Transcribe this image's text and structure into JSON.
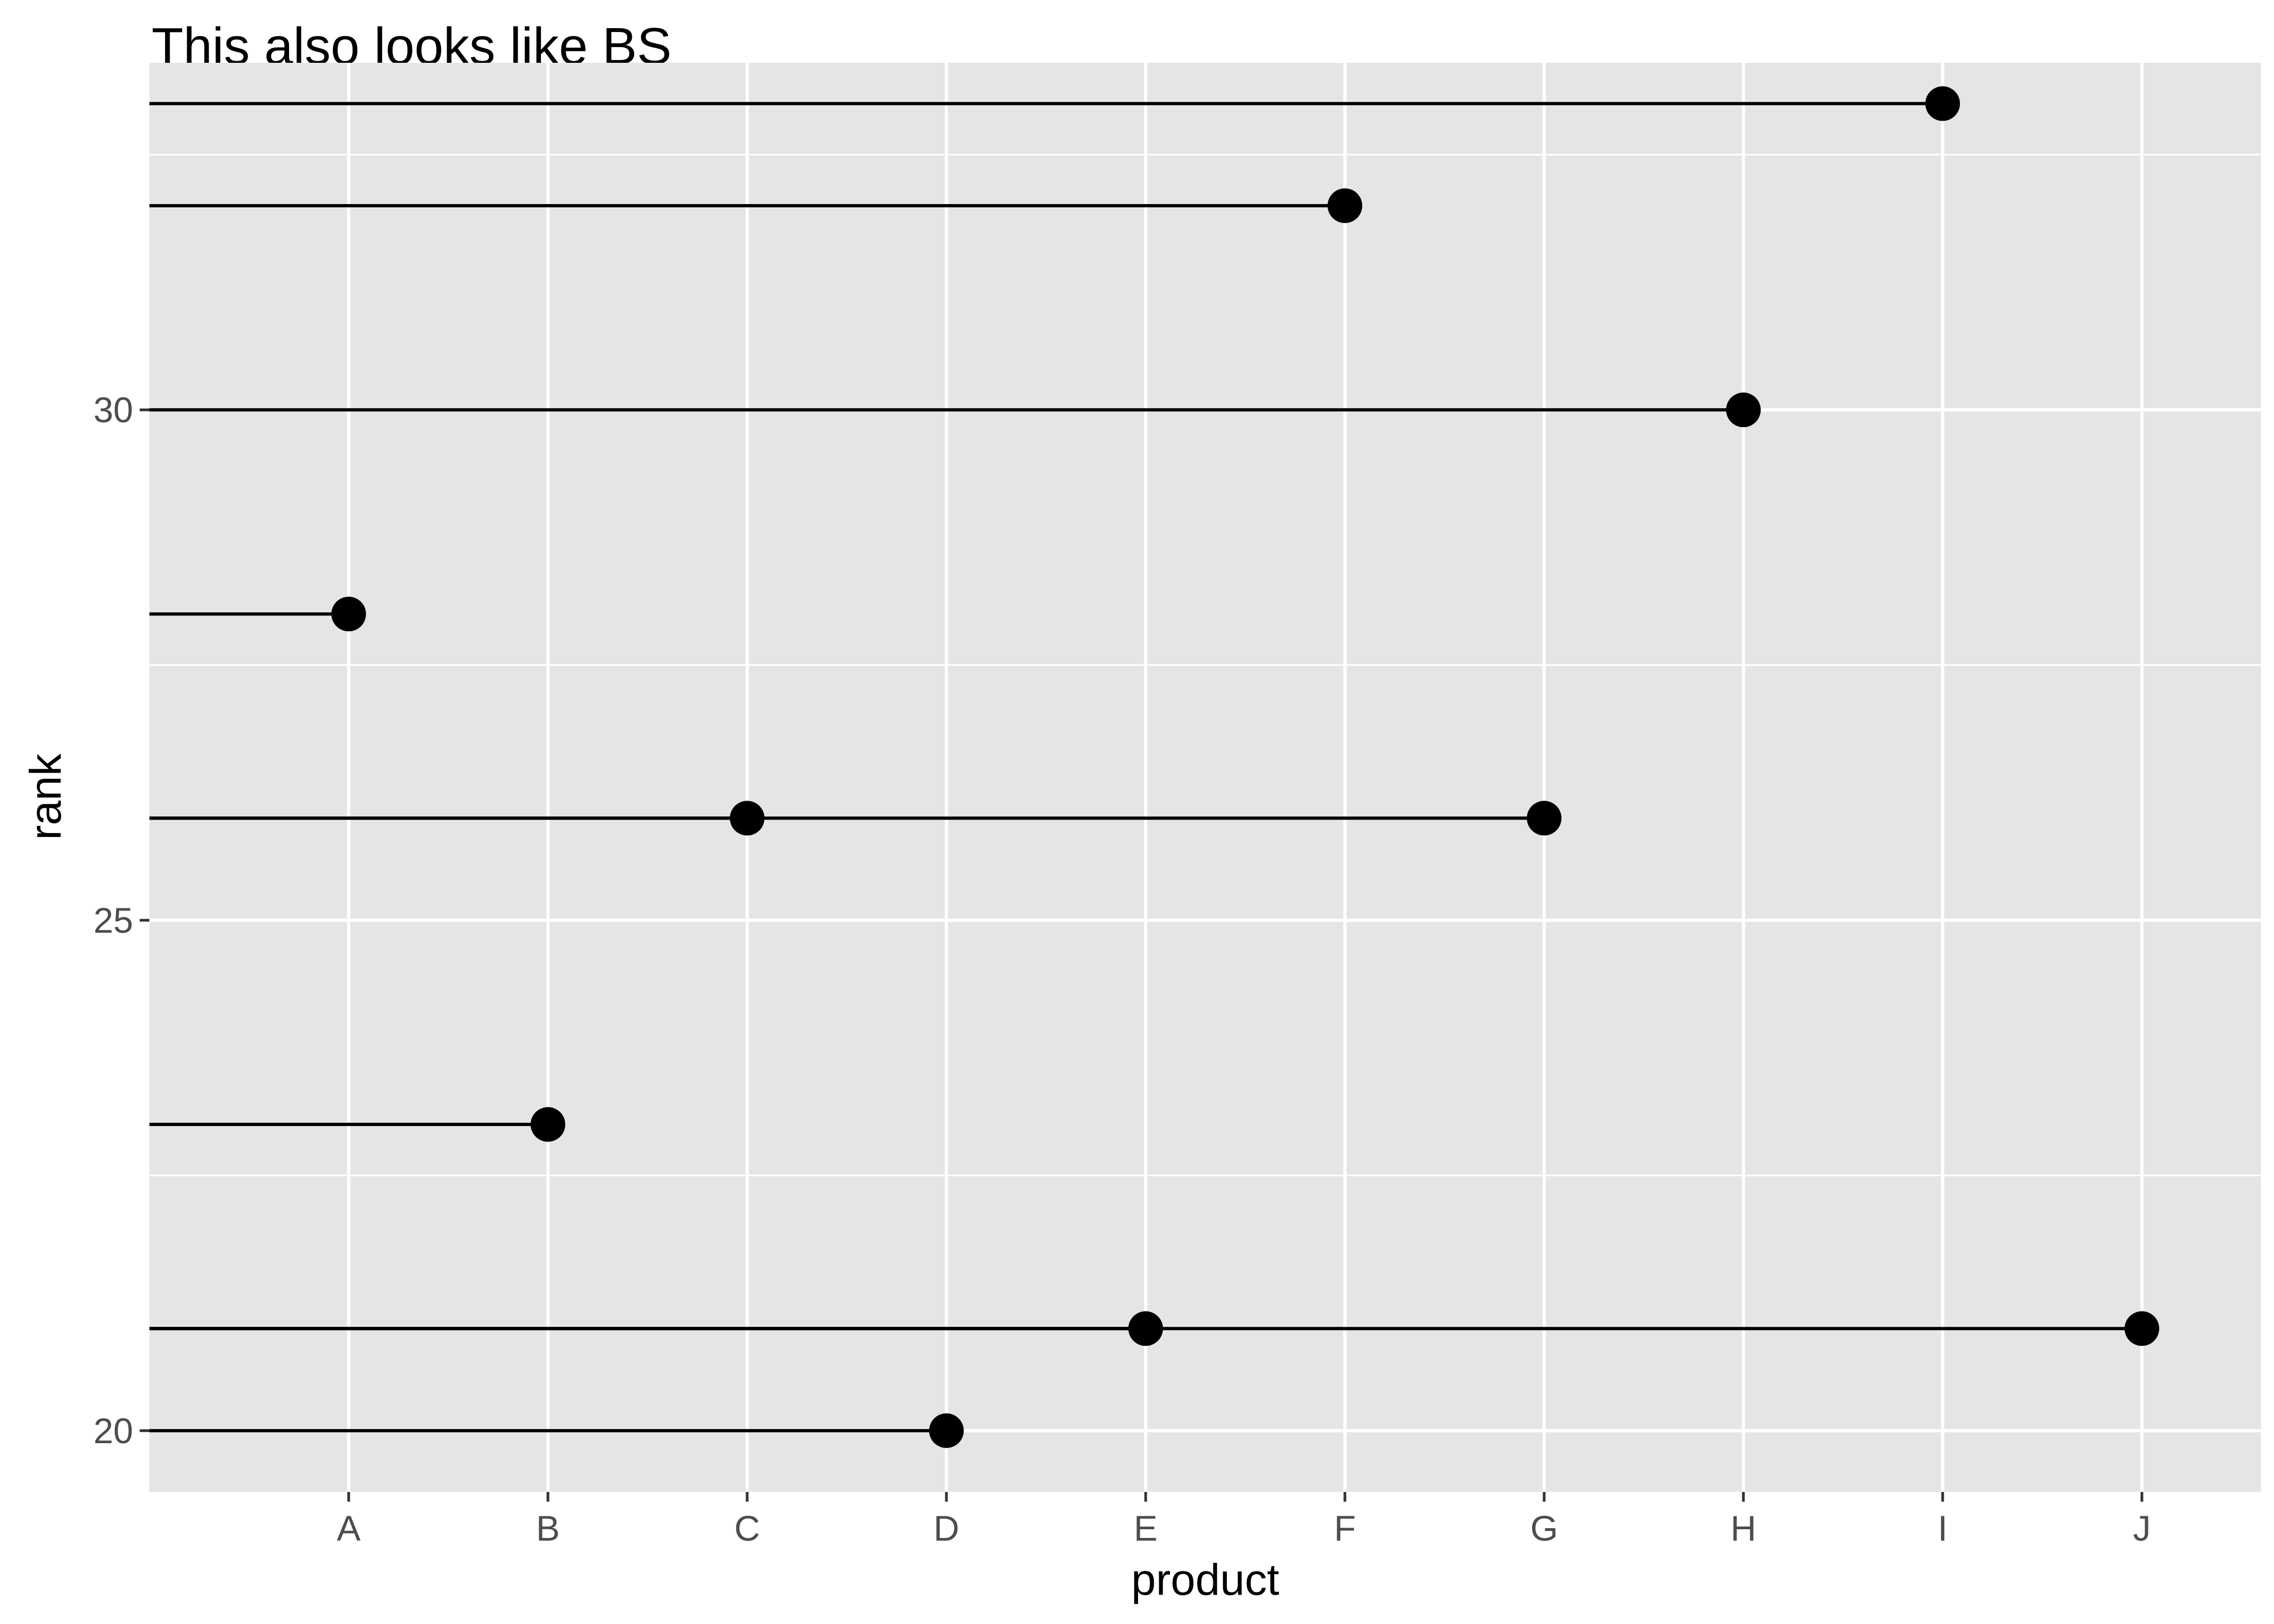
{
  "chart_data": {
    "type": "scatter",
    "title": "This also looks like BS",
    "xlabel": "product",
    "ylabel": "rank",
    "x_categories": [
      "A",
      "B",
      "C",
      "D",
      "E",
      "F",
      "G",
      "H",
      "I",
      "J"
    ],
    "y_ticks": [
      20,
      25,
      30
    ],
    "ylim": [
      19.4,
      33.4
    ],
    "grid": true,
    "legend": "none",
    "colors": {
      "panel": "#e5e5e5",
      "grid": "#ffffff",
      "mark": "#000000",
      "tick_text": "#4d4d4d"
    },
    "points": [
      {
        "product": "A",
        "rank": 28
      },
      {
        "product": "B",
        "rank": 23
      },
      {
        "product": "C",
        "rank": 26
      },
      {
        "product": "D",
        "rank": 20
      },
      {
        "product": "E",
        "rank": 21
      },
      {
        "product": "F",
        "rank": 32
      },
      {
        "product": "G",
        "rank": 26
      },
      {
        "product": "H",
        "rank": 30
      },
      {
        "product": "I",
        "rank": 33
      },
      {
        "product": "J",
        "rank": 21
      }
    ]
  }
}
